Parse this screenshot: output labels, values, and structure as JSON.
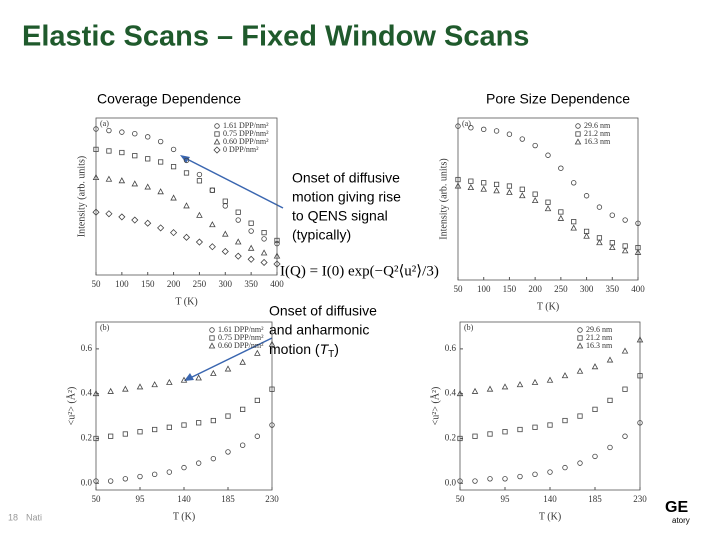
{
  "header": {
    "title": "Elastic Scans – Fixed Window Scans"
  },
  "sections": [
    "Coverage Dependence",
    "Pore Size Dependence"
  ],
  "annotations": [
    {
      "lines": [
        "Onset of diffusive",
        "motion giving rise",
        "to QENS signal",
        "(typically)"
      ]
    },
    {
      "lines": [
        "Onset of diffusive",
        "and anharmonic"
      ],
      "last": "motion (",
      "var": "T",
      "sub": "T",
      "close": ")"
    }
  ],
  "formula": "I(Q) = I(0) exp(−Q²⟨u²⟩/3)",
  "footer": {
    "page": "18",
    "text": "Nati",
    "logo": [
      "GE",
      "atory"
    ]
  },
  "chart_data": [
    {
      "type": "scatter",
      "panel": "(a)",
      "xlabel": "T (K)",
      "ylabel": "Intensity (arb. units)",
      "x": [
        50,
        75,
        100,
        125,
        150,
        175,
        200,
        225,
        250,
        275,
        300,
        325,
        350,
        375,
        400
      ],
      "xlim": [
        50,
        400
      ],
      "xticks": [
        50,
        100,
        150,
        200,
        250,
        300,
        350,
        400
      ],
      "ylim": [
        0,
        1
      ],
      "series": [
        {
          "name": "1.61 DPP/nm²",
          "marker": "circle",
          "color": "#444",
          "values": [
            0.93,
            0.92,
            0.91,
            0.9,
            0.88,
            0.85,
            0.8,
            0.73,
            0.64,
            0.54,
            0.44,
            0.35,
            0.28,
            0.23,
            0.2
          ]
        },
        {
          "name": "0.75 DPP/nm²",
          "marker": "square",
          "color": "#444",
          "values": [
            0.8,
            0.79,
            0.78,
            0.76,
            0.74,
            0.72,
            0.69,
            0.65,
            0.6,
            0.54,
            0.47,
            0.4,
            0.33,
            0.27,
            0.22
          ]
        },
        {
          "name": "0.60 DPP/nm²",
          "marker": "triangle",
          "color": "#444",
          "values": [
            0.62,
            0.61,
            0.6,
            0.58,
            0.56,
            0.53,
            0.49,
            0.44,
            0.38,
            0.32,
            0.26,
            0.21,
            0.17,
            0.14,
            0.12
          ]
        },
        {
          "name": "0 DPP/nm²",
          "marker": "diamond",
          "color": "#444",
          "values": [
            0.4,
            0.39,
            0.37,
            0.35,
            0.33,
            0.3,
            0.27,
            0.24,
            0.21,
            0.18,
            0.15,
            0.12,
            0.1,
            0.08,
            0.07
          ]
        }
      ]
    },
    {
      "type": "scatter",
      "panel": "(a)",
      "xlabel": "T (K)",
      "ylabel": "Intensity (arb. units)",
      "x": [
        50,
        75,
        100,
        125,
        150,
        175,
        200,
        225,
        250,
        275,
        300,
        325,
        350,
        375,
        400
      ],
      "xlim": [
        50,
        400
      ],
      "xticks": [
        50,
        100,
        150,
        200,
        250,
        300,
        350,
        400
      ],
      "ylim": [
        0,
        1
      ],
      "series": [
        {
          "name": "29.6 nm",
          "marker": "circle",
          "color": "#444",
          "values": [
            0.95,
            0.94,
            0.93,
            0.92,
            0.9,
            0.87,
            0.83,
            0.77,
            0.69,
            0.6,
            0.52,
            0.45,
            0.4,
            0.37,
            0.35
          ]
        },
        {
          "name": "21.2 nm",
          "marker": "square",
          "color": "#444",
          "values": [
            0.62,
            0.61,
            0.6,
            0.59,
            0.58,
            0.56,
            0.53,
            0.48,
            0.42,
            0.36,
            0.3,
            0.26,
            0.23,
            0.21,
            0.2
          ]
        },
        {
          "name": "16.3 nm",
          "marker": "triangle",
          "color": "#444",
          "values": [
            0.58,
            0.57,
            0.56,
            0.55,
            0.54,
            0.52,
            0.49,
            0.44,
            0.38,
            0.32,
            0.27,
            0.23,
            0.2,
            0.18,
            0.17
          ]
        }
      ]
    },
    {
      "type": "scatter",
      "panel": "(b)",
      "xlabel": "T (K)",
      "ylabel": "<u²> (Å²)",
      "x": [
        50,
        65,
        80,
        95,
        110,
        125,
        140,
        155,
        170,
        185,
        200,
        215,
        230
      ],
      "xlim": [
        50,
        230
      ],
      "xticks": [
        50,
        95,
        140,
        185,
        230
      ],
      "ylim": [
        -0.03,
        0.72
      ],
      "yticks": [
        {
          "value": 0,
          "label": "0.0"
        },
        0.2,
        0.4,
        0.6
      ],
      "series": [
        {
          "name": "1.61 DPP/nm²",
          "marker": "circle",
          "color": "#444",
          "values": [
            0.01,
            0.01,
            0.02,
            0.03,
            0.04,
            0.05,
            0.07,
            0.09,
            0.11,
            0.14,
            0.17,
            0.21,
            0.26
          ]
        },
        {
          "name": "0.75 DPP/nm²",
          "marker": "square",
          "color": "#444",
          "values": [
            0.2,
            0.21,
            0.22,
            0.23,
            0.24,
            0.25,
            0.26,
            0.27,
            0.28,
            0.3,
            0.33,
            0.37,
            0.42
          ]
        },
        {
          "name": "0.60 DPP/nm²",
          "marker": "triangle",
          "color": "#444",
          "values": [
            0.4,
            0.41,
            0.42,
            0.43,
            0.44,
            0.45,
            0.46,
            0.47,
            0.49,
            0.51,
            0.54,
            0.58,
            0.62
          ]
        }
      ]
    },
    {
      "type": "scatter",
      "panel": "(b)",
      "xlabel": "T (K)",
      "ylabel": "<u²> (Å²)",
      "x": [
        50,
        65,
        80,
        95,
        110,
        125,
        140,
        155,
        170,
        185,
        200,
        215,
        230
      ],
      "xlim": [
        50,
        230
      ],
      "xticks": [
        50,
        95,
        140,
        185,
        230
      ],
      "ylim": [
        -0.03,
        0.72
      ],
      "yticks": [
        {
          "value": 0,
          "label": "0.0"
        },
        0.2,
        0.4,
        0.6
      ],
      "series": [
        {
          "name": "29.6 nm",
          "marker": "circle",
          "color": "#444",
          "values": [
            0.01,
            0.01,
            0.02,
            0.02,
            0.03,
            0.04,
            0.05,
            0.07,
            0.09,
            0.12,
            0.16,
            0.21,
            0.27
          ]
        },
        {
          "name": "21.2 nm",
          "marker": "square",
          "color": "#444",
          "values": [
            0.2,
            0.21,
            0.22,
            0.23,
            0.24,
            0.25,
            0.26,
            0.28,
            0.3,
            0.33,
            0.37,
            0.42,
            0.48
          ]
        },
        {
          "name": "16.3 nm",
          "marker": "triangle",
          "color": "#444",
          "values": [
            0.4,
            0.41,
            0.42,
            0.43,
            0.44,
            0.45,
            0.46,
            0.48,
            0.5,
            0.52,
            0.55,
            0.59,
            0.64
          ]
        }
      ]
    }
  ]
}
